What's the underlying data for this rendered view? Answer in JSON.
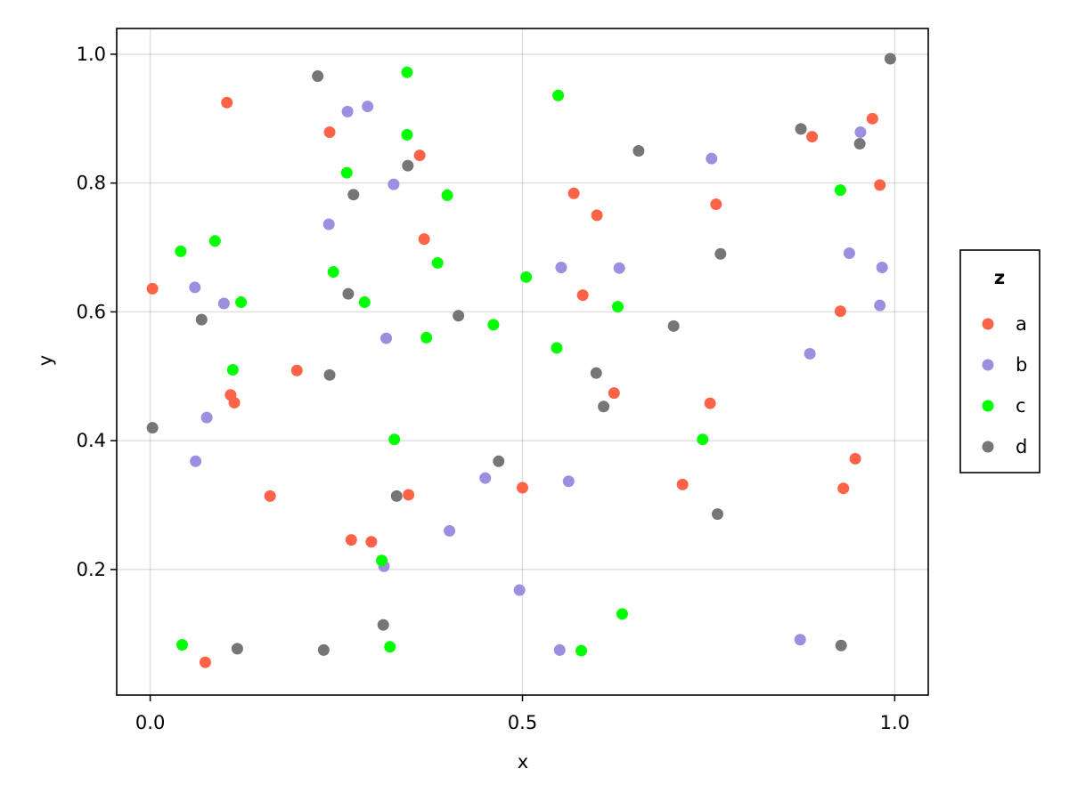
{
  "chart_data": {
    "type": "scatter",
    "title": "",
    "xlabel": "x",
    "ylabel": "y",
    "xlim": [
      -0.045,
      1.045
    ],
    "ylim": [
      0.005,
      1.04
    ],
    "xticks": [
      0.0,
      0.5,
      1.0
    ],
    "yticks": [
      0.2,
      0.4,
      0.6,
      0.8,
      1.0
    ],
    "xtick_labels": [
      "0.0",
      "0.5",
      "1.0"
    ],
    "ytick_labels": [
      "0.2",
      "0.4",
      "0.6",
      "0.8",
      "1.0"
    ],
    "grid": true,
    "legend": {
      "title": "z",
      "placement": "right"
    },
    "series": [
      {
        "name": "a",
        "color": "#FF6347",
        "points": [
          [
            0.003,
            0.636
          ],
          [
            0.103,
            0.925
          ],
          [
            0.108,
            0.471
          ],
          [
            0.113,
            0.459
          ],
          [
            0.161,
            0.314
          ],
          [
            0.197,
            0.509
          ],
          [
            0.241,
            0.879
          ],
          [
            0.27,
            0.246
          ],
          [
            0.297,
            0.243
          ],
          [
            0.347,
            0.316
          ],
          [
            0.362,
            0.843
          ],
          [
            0.368,
            0.713
          ],
          [
            0.5,
            0.327
          ],
          [
            0.569,
            0.784
          ],
          [
            0.581,
            0.626
          ],
          [
            0.6,
            0.75
          ],
          [
            0.623,
            0.474
          ],
          [
            0.715,
            0.332
          ],
          [
            0.752,
            0.458
          ],
          [
            0.76,
            0.767
          ],
          [
            0.889,
            0.872
          ],
          [
            0.927,
            0.601
          ],
          [
            0.931,
            0.326
          ],
          [
            0.947,
            0.372
          ],
          [
            0.97,
            0.9
          ],
          [
            0.98,
            0.797
          ],
          [
            0.074,
            0.056
          ]
        ]
      },
      {
        "name": "b",
        "color": "#9C8FE0",
        "points": [
          [
            0.06,
            0.638
          ],
          [
            0.061,
            0.368
          ],
          [
            0.076,
            0.436
          ],
          [
            0.099,
            0.613
          ],
          [
            0.24,
            0.736
          ],
          [
            0.265,
            0.911
          ],
          [
            0.292,
            0.919
          ],
          [
            0.314,
            0.205
          ],
          [
            0.317,
            0.559
          ],
          [
            0.327,
            0.798
          ],
          [
            0.402,
            0.26
          ],
          [
            0.45,
            0.342
          ],
          [
            0.496,
            0.168
          ],
          [
            0.55,
            0.075
          ],
          [
            0.552,
            0.669
          ],
          [
            0.562,
            0.337
          ],
          [
            0.63,
            0.668
          ],
          [
            0.754,
            0.838
          ],
          [
            0.873,
            0.091
          ],
          [
            0.886,
            0.535
          ],
          [
            0.939,
            0.691
          ],
          [
            0.954,
            0.879
          ],
          [
            0.98,
            0.61
          ],
          [
            0.983,
            0.669
          ]
        ]
      },
      {
        "name": "c",
        "color": "#00FF00",
        "points": [
          [
            0.041,
            0.694
          ],
          [
            0.043,
            0.083
          ],
          [
            0.087,
            0.71
          ],
          [
            0.111,
            0.51
          ],
          [
            0.122,
            0.615
          ],
          [
            0.246,
            0.662
          ],
          [
            0.264,
            0.816
          ],
          [
            0.288,
            0.615
          ],
          [
            0.311,
            0.214
          ],
          [
            0.322,
            0.08
          ],
          [
            0.328,
            0.402
          ],
          [
            0.345,
            0.972
          ],
          [
            0.345,
            0.875
          ],
          [
            0.371,
            0.56
          ],
          [
            0.386,
            0.676
          ],
          [
            0.399,
            0.781
          ],
          [
            0.461,
            0.58
          ],
          [
            0.505,
            0.654
          ],
          [
            0.546,
            0.544
          ],
          [
            0.548,
            0.936
          ],
          [
            0.579,
            0.074
          ],
          [
            0.628,
            0.608
          ],
          [
            0.634,
            0.131
          ],
          [
            0.742,
            0.402
          ],
          [
            0.927,
            0.789
          ]
        ]
      },
      {
        "name": "d",
        "color": "#767676",
        "points": [
          [
            0.003,
            0.42
          ],
          [
            0.069,
            0.588
          ],
          [
            0.117,
            0.077
          ],
          [
            0.225,
            0.966
          ],
          [
            0.233,
            0.075
          ],
          [
            0.241,
            0.502
          ],
          [
            0.266,
            0.628
          ],
          [
            0.273,
            0.782
          ],
          [
            0.313,
            0.114
          ],
          [
            0.331,
            0.314
          ],
          [
            0.346,
            0.827
          ],
          [
            0.414,
            0.594
          ],
          [
            0.468,
            0.368
          ],
          [
            0.599,
            0.505
          ],
          [
            0.609,
            0.453
          ],
          [
            0.656,
            0.85
          ],
          [
            0.703,
            0.578
          ],
          [
            0.762,
            0.286
          ],
          [
            0.766,
            0.69
          ],
          [
            0.874,
            0.884
          ],
          [
            0.928,
            0.082
          ],
          [
            0.953,
            0.861
          ],
          [
            0.994,
            0.993
          ]
        ]
      }
    ]
  }
}
